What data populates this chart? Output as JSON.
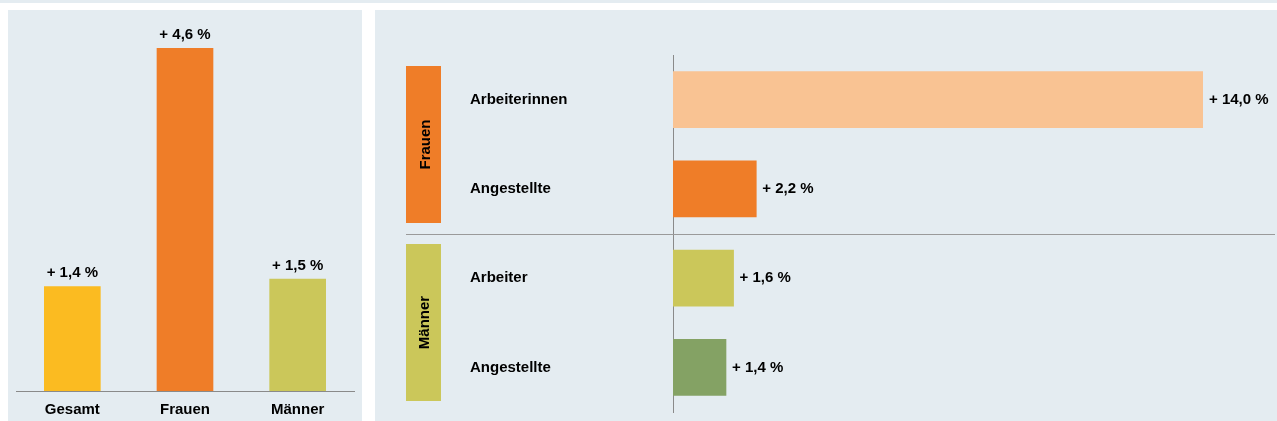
{
  "chart_data": [
    {
      "type": "bar",
      "categories": [
        "Gesamt",
        "Frauen",
        "Männer"
      ],
      "values": [
        1.4,
        4.6,
        1.5
      ],
      "colors": [
        "#fbbb21",
        "#ef7d28",
        "#cbc75a"
      ],
      "value_labels": [
        "+ 1,4 %",
        "+ 4,6 %",
        "+ 1,5 %"
      ]
    },
    {
      "type": "bar",
      "orientation": "horizontal",
      "categories": [
        "Arbeiterinnen",
        "Angestellte",
        "Arbeiter",
        "Angestellte"
      ],
      "values": [
        14.0,
        2.2,
        1.6,
        1.4
      ],
      "colors": [
        "#f9c393",
        "#ef7d28",
        "#cbc75a",
        "#84a264"
      ],
      "value_labels": [
        "+ 14,0 %",
        "+ 2,2 %",
        "+ 1,6 %",
        "+ 1,4 %"
      ],
      "annotations": [
        "Frauen",
        "Männer"
      ]
    }
  ]
}
